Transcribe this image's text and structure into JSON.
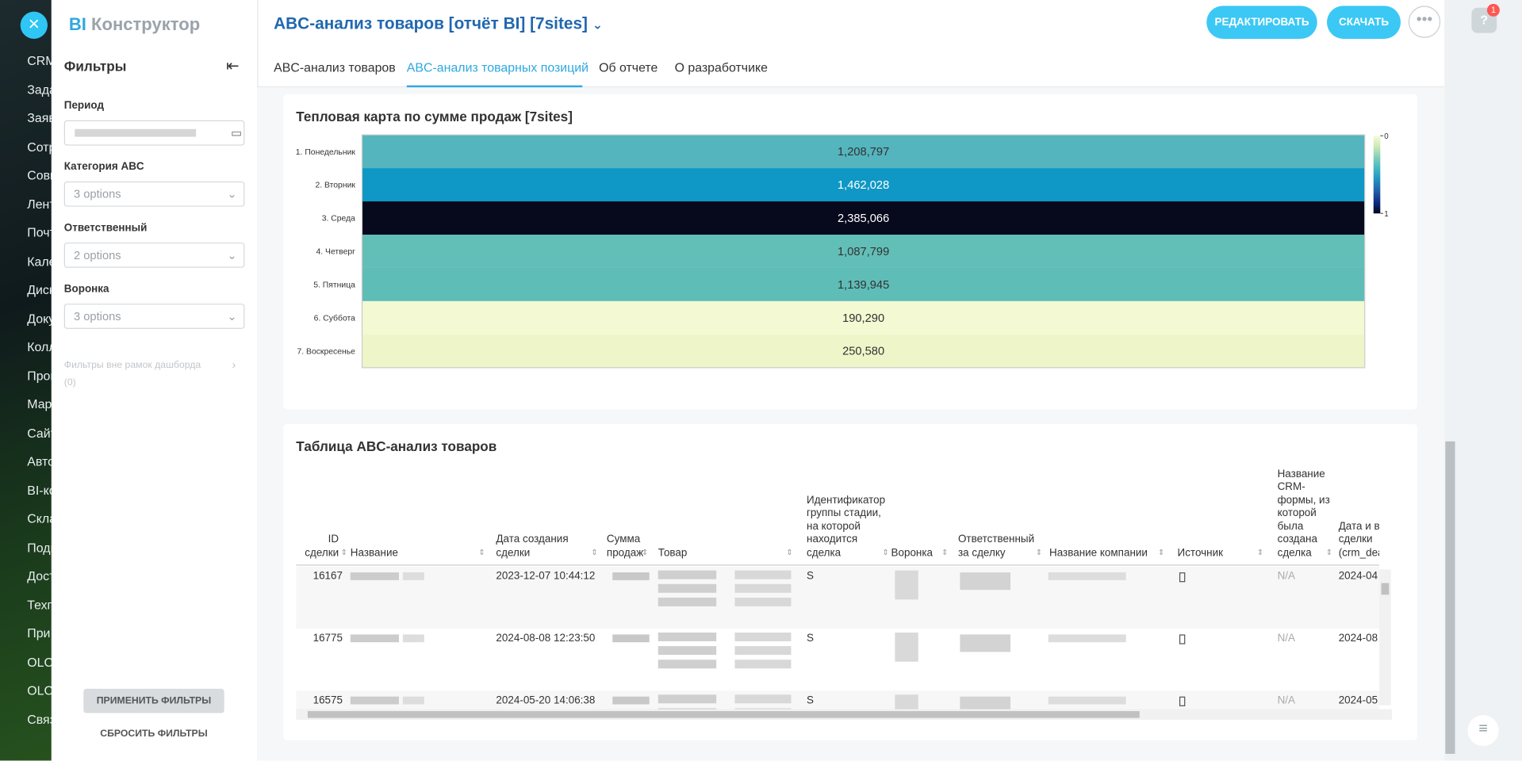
{
  "nav": {
    "items": [
      "CRM",
      "Зада",
      "Заяв",
      "Сотр",
      "Совм",
      "Лент",
      "Почт",
      "Кале",
      "Диск",
      "Доку",
      "Колл",
      "Прог",
      "Мар",
      "Сайт",
      "Авто",
      "BI-ко",
      "Скла",
      "Подп",
      "Дост",
      "Техп",
      "При",
      "OLC",
      "OLC",
      "Связ"
    ]
  },
  "header": {
    "brand_prefix": "BI",
    "brand": "Конструктор",
    "title": "ABC-анализ товаров [отчёт BI] [7sites]",
    "edit_button": "РЕДАКТИРОВАТЬ",
    "download_button": "СКАЧАТЬ",
    "help_badge": "1"
  },
  "filters": {
    "title": "Фильтры",
    "period_label": "Период",
    "abc_label": "Категория ABC",
    "abc_value": "3 options",
    "owner_label": "Ответственный",
    "owner_value": "2 options",
    "funnel_label": "Воронка",
    "funnel_value": "3 options",
    "outside_label": "Фильтры вне рамок дашборда",
    "outside_count": "(0)",
    "apply": "ПРИМЕНИТЬ ФИЛЬТРЫ",
    "reset": "СБРОСИТЬ ФИЛЬТРЫ"
  },
  "tabs": {
    "items": [
      "ABC-анализ товаров",
      "ABC-анализ товарных позиций",
      "Об отчете",
      "О разработчике"
    ],
    "active": 1
  },
  "heatmap": {
    "title": "Тепловая карта по сумме продаж [7sites]",
    "categories": [
      "1. Понедельник",
      "2. Вторник",
      "3. Среда",
      "4. Четверг",
      "5. Пятница",
      "6. Суббота",
      "7. Воскресенье"
    ],
    "values": [
      1208797,
      1462028,
      2385066,
      1087799,
      1139945,
      190290,
      250580
    ],
    "value_labels": [
      "1,208,797",
      "1,462,028",
      "2,385,066",
      "1,087,799",
      "1,139,945",
      "190,290",
      "250,580"
    ],
    "colors": [
      "#54b5be",
      "#0f97c5",
      "#07091c",
      "#62bfb8",
      "#5fbdb8",
      "#f3f9d2",
      "#eef6c9"
    ],
    "colorbar_lim": [
      0,
      1
    ],
    "colorbar_ticks": [
      0,
      1
    ],
    "colorbar_colors": [
      "#f7fcd4",
      "#c8e9b6",
      "#7fcdbb",
      "#41b6c4",
      "#1d91c0",
      "#225ea8",
      "#0c2c84",
      "#03051a"
    ]
  },
  "table": {
    "title": "Таблица ABC-анализ товаров",
    "headers": [
      "ID сделки",
      "Название",
      "Дата создания сделки",
      "Сумма продаж",
      "Товар",
      "Идентификатор группы стадии, на которой находится сделка",
      "Воронка",
      "Ответственный за сделку",
      "Название компании",
      "Источник",
      "Название CRM-формы, из которой была создана сделка",
      "Дата и время сделки (crm_deal_"
    ],
    "rows": [
      {
        "id": 16167,
        "date": "2023-12-07 10:44:12",
        "stage": "S",
        "form": "N/A",
        "deal_date": "2024-04"
      },
      {
        "id": 16775,
        "date": "2024-08-08 12:23:50",
        "stage": "S",
        "form": "N/A",
        "deal_date": "2024-08"
      },
      {
        "id": 16575,
        "date": "2024-05-20 14:06:38",
        "stage": "S",
        "form": "N/A",
        "deal_date": "2024-05"
      }
    ]
  }
}
